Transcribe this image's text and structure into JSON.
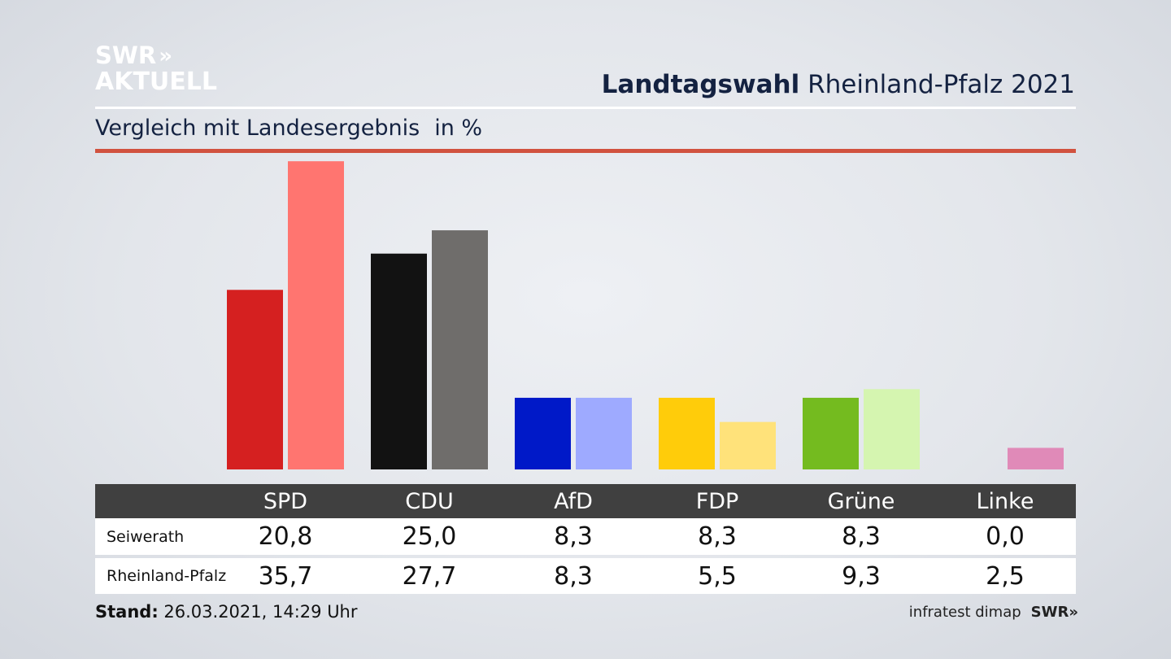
{
  "logo": {
    "line1": "SWR",
    "chevrons": "»",
    "line2": "AKTUELL"
  },
  "header": {
    "title_bold": "Landtagswahl",
    "title_rest": "Rheinland-Pfalz 2021"
  },
  "subtitle": {
    "text": "Vergleich mit Landesergebnis",
    "unit": "in %"
  },
  "chart_data": {
    "type": "bar",
    "categories": [
      "SPD",
      "CDU",
      "AfD",
      "FDP",
      "Grüne",
      "Linke"
    ],
    "series": [
      {
        "name": "Seiwerath",
        "values": [
          20.8,
          25.0,
          8.3,
          8.3,
          8.3,
          0.0
        ],
        "display": [
          "20,8",
          "25,0",
          "8,3",
          "8,3",
          "8,3",
          "0,0"
        ]
      },
      {
        "name": "Rheinland-Pfalz",
        "values": [
          35.7,
          27.7,
          8.3,
          5.5,
          9.3,
          2.5
        ],
        "display": [
          "35,7",
          "27,7",
          "8,3",
          "5,5",
          "9,3",
          "2,5"
        ]
      }
    ],
    "colors": [
      [
        "#d52020",
        "#ff7570"
      ],
      [
        "#121212",
        "#6f6d6b"
      ],
      [
        "#0019c8",
        "#9eaaff"
      ],
      [
        "#ffcc0a",
        "#ffe27a"
      ],
      [
        "#74bb1f",
        "#d5f5b0"
      ],
      [
        "#b01d6e",
        "#e08ab8"
      ]
    ],
    "ylim": [
      0,
      36
    ]
  },
  "footer": {
    "stand_label": "Stand:",
    "stand_value": "26.03.2021, 14:29 Uhr",
    "source": "infratest dimap",
    "brand": "SWR",
    "brand_chev": "»"
  }
}
